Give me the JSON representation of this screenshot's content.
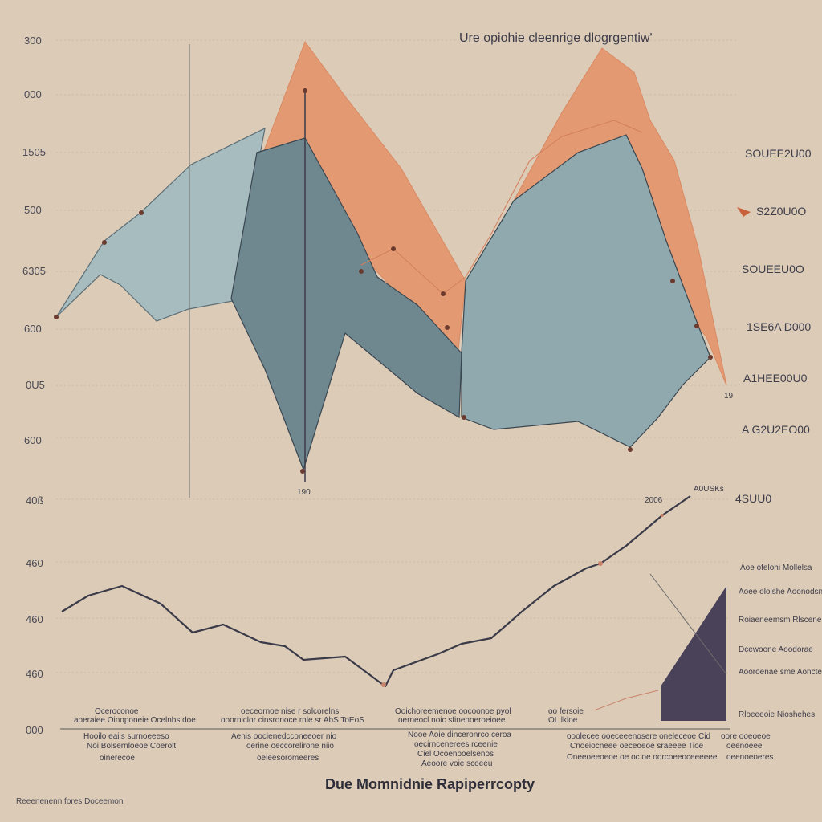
{
  "chart_data": [
    {
      "type": "area",
      "title": "Ure opiohie cleenrige dlogrgentiw'",
      "y_tick_labels": [
        "300",
        "000",
        "1505",
        "500",
        "6305",
        "600",
        "0U5",
        "600"
      ],
      "right_labels": [
        "SOUEE2U00",
        "S2Z0U0O",
        "SOUEEU0O",
        "1SE6A D000",
        "A1HEE00U0",
        "A G2U2EO00"
      ],
      "callout_labels": [
        "190",
        "19"
      ],
      "grid": true,
      "colors": {
        "orange": "#e39a72",
        "light_blue": "#a7bcbf",
        "dark_blue": "#6f8890",
        "mid_blue": "#8fa9ae",
        "line": "#3a3a48"
      },
      "series": [
        {
          "color": "orange",
          "x": [
            0,
            2.2,
            3.0,
            6.0,
            6.5,
            8.0,
            9.0,
            9.6
          ],
          "y": [
            165,
            870,
            740,
            560,
            395,
            745,
            650,
            280
          ]
        },
        {
          "color": "light_blue",
          "x": [
            0,
            1.0,
            2.0,
            4.0,
            6.0,
            7.0,
            8.0,
            9.2
          ],
          "y": [
            490,
            655,
            740,
            370,
            530,
            530,
            590,
            470
          ]
        },
        {
          "color": "dark_blue",
          "x": [
            0,
            1.0,
            2.2,
            3.0,
            4.0,
            5.0,
            6.0
          ],
          "y": [
            440,
            590,
            700,
            260,
            430,
            350,
            450
          ]
        },
        {
          "color": "mid_blue",
          "x": [
            6.0,
            7.0,
            7.5,
            8.5,
            9.0
          ],
          "y": [
            300,
            750,
            680,
            290,
            380
          ]
        }
      ]
    },
    {
      "type": "line",
      "y_tick_labels": [
        "40ß",
        "460",
        "460",
        "460",
        "000"
      ],
      "right_label": "4SUU0",
      "top_labels": [
        "2006",
        "A0USKs"
      ],
      "series": [
        {
          "name": "",
          "x": [
            0,
            1,
            2,
            3,
            4,
            5,
            6,
            7,
            8,
            9,
            10,
            11,
            12,
            13,
            14,
            15,
            16,
            17
          ],
          "y": [
            1.6,
            2.4,
            2.5,
            1.6,
            1.9,
            0.9,
            1.2,
            0.3,
            0.7,
            -0.9,
            0.4,
            1.0,
            1.8,
            3.2,
            4.6,
            6.0,
            7.1,
            8.0
          ]
        }
      ],
      "side_notes": [
        "Aoe ofelohi Mollelsa",
        "Aoee ololshe Aoonodsnoe",
        "Roiaeneemsm Rlscenelosie",
        "Dcewoone Aoodorae",
        "Aooroenae sme Aoncteoees Doos boeng",
        "Rloeeeoie Nioshehes"
      ],
      "captions": [
        [
          "Oceroconoe",
          "aoeraiee Oinoponeie Ocelnbs doe"
        ],
        [
          "Hooilo eaiis surnoeeeso",
          "Noi Bolsernloeoe Coerolt",
          "oinerecoe"
        ],
        [
          "oeceornoe nise r solcorelns",
          "ooorniclor cinsronoce rnle sr AbS ToEoS"
        ],
        [
          "Aenis oocienedcconeeoer nio",
          "oerine oeccorelirone niio",
          "oeleesoromeeres"
        ],
        [
          "Ooichoreemenoe oocoonoe pyol",
          "oerneocl noic sfinenoeroeioee"
        ],
        [
          "Nooe Aoie dinceronrco ceroa",
          "oecirncenerees rceenie",
          "Ciel Ocoenooelsenos",
          "Aeoore voie scoeeu"
        ],
        [
          "oo fersoie",
          "OL lkloe"
        ],
        [
          "ooolecee ooeceeenosere oneleceoe Cid",
          "Cnoeiocneee oeceoeoe sraeeee Tioe",
          "Oneeoeeoeoe oe oc oe oorcoeeoceeeeee"
        ],
        [
          "oore ooeoeoe",
          "oeenoeee",
          "oeenoeoeres"
        ]
      ]
    }
  ],
  "xlabel": "Due Momnidnie Rapiperrcopty",
  "footer": "Reeenenenn fores Doceemon"
}
